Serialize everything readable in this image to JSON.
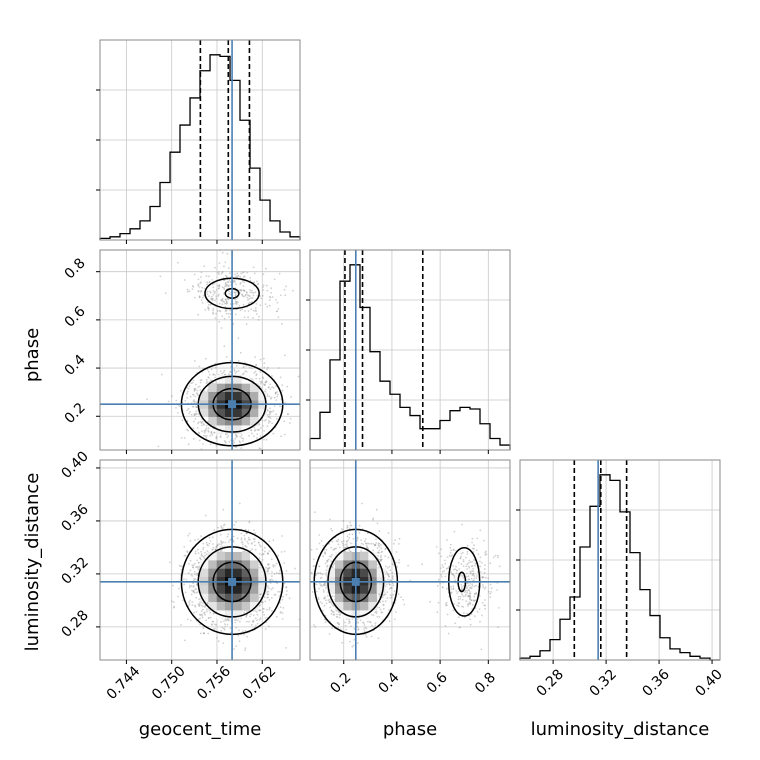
{
  "chart_data": {
    "type": "corner",
    "parameters": [
      "geocent_time",
      "phase",
      "luminosity_distance"
    ],
    "axis_labels": {
      "geocent_time": "geocent_time",
      "phase": "phase",
      "luminosity_distance": "luminosity_distance"
    },
    "ranges": {
      "geocent_time": [
        0.7405,
        0.767
      ],
      "phase": [
        0.06,
        0.89
      ],
      "luminosity_distance": [
        0.255,
        0.406
      ]
    },
    "ticks": {
      "geocent_time": [
        "0.744",
        "0.750",
        "0.756",
        "0.762"
      ],
      "phase": [
        "0.2",
        "0.4",
        "0.6",
        "0.8"
      ],
      "luminosity_distance": [
        "0.28",
        "0.32",
        "0.36",
        "0.40"
      ]
    },
    "truths": {
      "geocent_time": 0.758,
      "phase": 0.25,
      "luminosity_distance": 0.314
    },
    "quantiles": {
      "geocent_time": [
        0.7538,
        0.7575,
        0.7603
      ],
      "phase": [
        0.205,
        0.278,
        0.528
      ],
      "luminosity_distance": [
        0.296,
        0.316,
        0.3355
      ]
    },
    "histograms": {
      "geocent_time": {
        "edges": [
          0.7405,
          0.74183,
          0.74315,
          0.74448,
          0.7458,
          0.74713,
          0.74845,
          0.74978,
          0.7511,
          0.75243,
          0.75375,
          0.75508,
          0.7564,
          0.75773,
          0.75905,
          0.76038,
          0.7617,
          0.76303,
          0.76435,
          0.76568,
          0.767
        ],
        "counts": [
          1,
          2,
          4,
          7,
          12,
          21,
          36,
          55,
          72,
          89,
          106,
          116,
          115,
          100,
          75,
          45,
          25,
          12,
          5,
          2
        ]
      },
      "phase": {
        "edges": [
          0.06,
          0.1015,
          0.143,
          0.1845,
          0.226,
          0.2675,
          0.309,
          0.3505,
          0.392,
          0.4335,
          0.475,
          0.5165,
          0.558,
          0.5995,
          0.641,
          0.6825,
          0.724,
          0.7655,
          0.807,
          0.8485,
          0.89
        ],
        "counts": [
          7,
          23,
          55,
          103,
          113,
          87,
          60,
          42,
          34,
          26,
          21,
          13,
          13,
          18,
          24,
          26,
          25,
          16,
          7,
          3
        ]
      },
      "luminosity_distance": {
        "edges": [
          0.255,
          0.26255,
          0.2701,
          0.27765,
          0.2852,
          0.29275,
          0.3003,
          0.30785,
          0.3154,
          0.32295,
          0.3305,
          0.33805,
          0.3456,
          0.35315,
          0.3607,
          0.36825,
          0.3758,
          0.38335,
          0.3909,
          0.39845,
          0.406
        ],
        "counts": [
          1,
          2,
          5,
          11,
          22,
          34,
          61,
          83,
          100,
          97,
          80,
          58,
          38,
          24,
          12,
          6,
          4,
          2,
          1,
          0
        ]
      }
    },
    "contour_levels": 3,
    "grid": true
  }
}
